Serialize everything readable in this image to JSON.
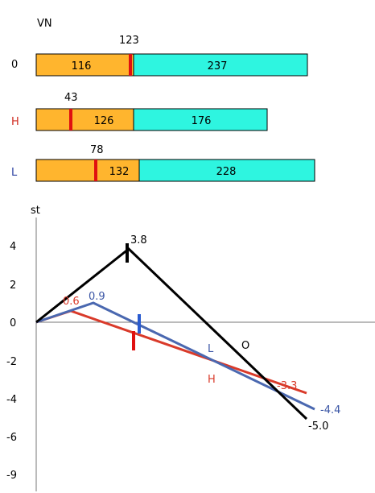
{
  "title": "VN",
  "bars": [
    {
      "row_label": "0",
      "row_color": "#000000",
      "marker_label": "123",
      "marker_color": "#e01010",
      "seg1": "116",
      "seg2": "237",
      "seg1_color": "#ffb52e",
      "seg2_color": "#2ef5e0"
    },
    {
      "row_label": "H",
      "row_color": "#d02a1e",
      "marker_label": "43",
      "marker_color": "#e01010",
      "seg1": "126",
      "seg2": "176",
      "seg1_color": "#ffb52e",
      "seg2_color": "#2ef5e0"
    },
    {
      "row_label": "L",
      "row_color": "#2a3fa0",
      "marker_label": "78",
      "marker_color": "#e01010",
      "seg1": "132",
      "seg2": "228",
      "seg1_color": "#ffb52e",
      "seg2_color": "#2ef5e0"
    }
  ],
  "chart": {
    "ylabel": "st",
    "y_ticks": [
      "4",
      "2",
      "0",
      "-2",
      "-4",
      "-6",
      "-9"
    ],
    "lines": [
      {
        "name": "O",
        "color": "#000000",
        "labels": [
          "3.8",
          "-5.0"
        ]
      },
      {
        "name": "L",
        "color": "#4a68b0",
        "labels": [
          "0.9",
          "-4.4"
        ]
      },
      {
        "name": "H",
        "color": "#d93a2a",
        "labels": [
          "0.6",
          "-3.3"
        ]
      }
    ]
  }
}
